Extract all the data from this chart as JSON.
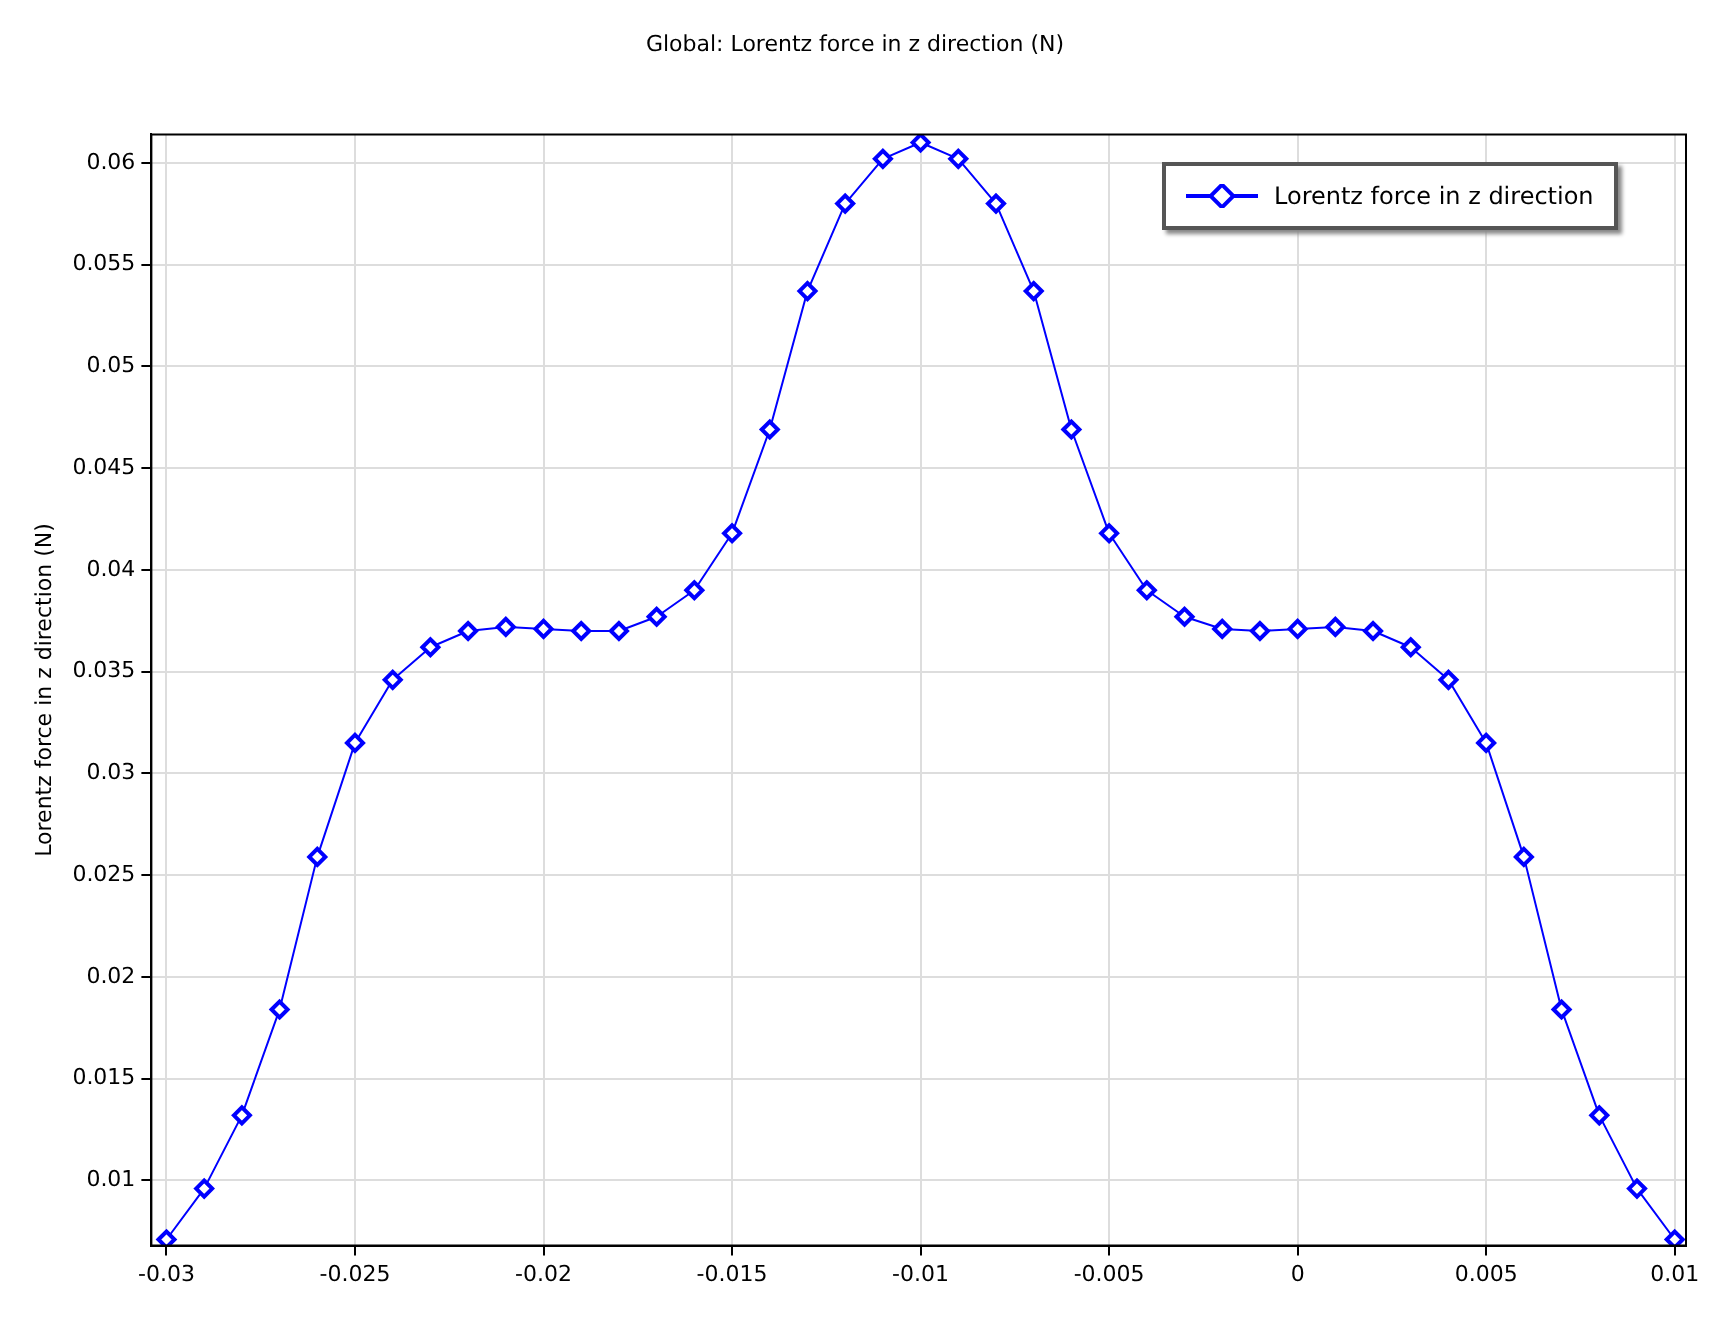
{
  "chart_data": {
    "type": "line",
    "title": "Global: Lorentz force in z direction (N)",
    "ylabel": "Lorentz force in z direction (N)",
    "x": [
      -0.03,
      -0.029,
      -0.028,
      -0.027,
      -0.026,
      -0.025,
      -0.024,
      -0.023,
      -0.022,
      -0.021,
      -0.02,
      -0.019,
      -0.018,
      -0.017,
      -0.016,
      -0.015,
      -0.014,
      -0.013,
      -0.012,
      -0.011,
      -0.01,
      -0.009,
      -0.008,
      -0.007,
      -0.006,
      -0.005,
      -0.004,
      -0.003,
      -0.002,
      -0.001,
      0,
      0.001,
      0.002,
      0.003,
      0.004,
      0.005,
      0.006,
      0.007,
      0.008,
      0.009,
      0.01
    ],
    "series": [
      {
        "name": "Lorentz force in z direction",
        "color": "#0000ff",
        "values": [
          0.0071,
          0.0096,
          0.0132,
          0.0184,
          0.0259,
          0.0315,
          0.0346,
          0.0362,
          0.037,
          0.0372,
          0.0371,
          0.037,
          0.037,
          0.0377,
          0.039,
          0.0418,
          0.0469,
          0.0537,
          0.058,
          0.0602,
          0.061,
          0.0602,
          0.058,
          0.0537,
          0.0469,
          0.0418,
          0.039,
          0.0377,
          0.0371,
          0.037,
          0.0371,
          0.0372,
          0.037,
          0.0362,
          0.0346,
          0.0315,
          0.0259,
          0.0184,
          0.0132,
          0.0096,
          0.0071
        ]
      }
    ],
    "xlim": [
      -0.0304,
      0.0103
    ],
    "xticks": [
      -0.03,
      -0.025,
      -0.02,
      -0.015,
      -0.01,
      -0.005,
      0,
      0.005,
      0.01
    ],
    "ylim": [
      0.0068,
      0.0614
    ],
    "yticks": [
      0.01,
      0.015,
      0.02,
      0.025,
      0.03,
      0.035,
      0.04,
      0.045,
      0.05,
      0.055,
      0.06
    ],
    "grid": true,
    "legend": "top right",
    "marker": "diamond",
    "line_style": "solid"
  }
}
